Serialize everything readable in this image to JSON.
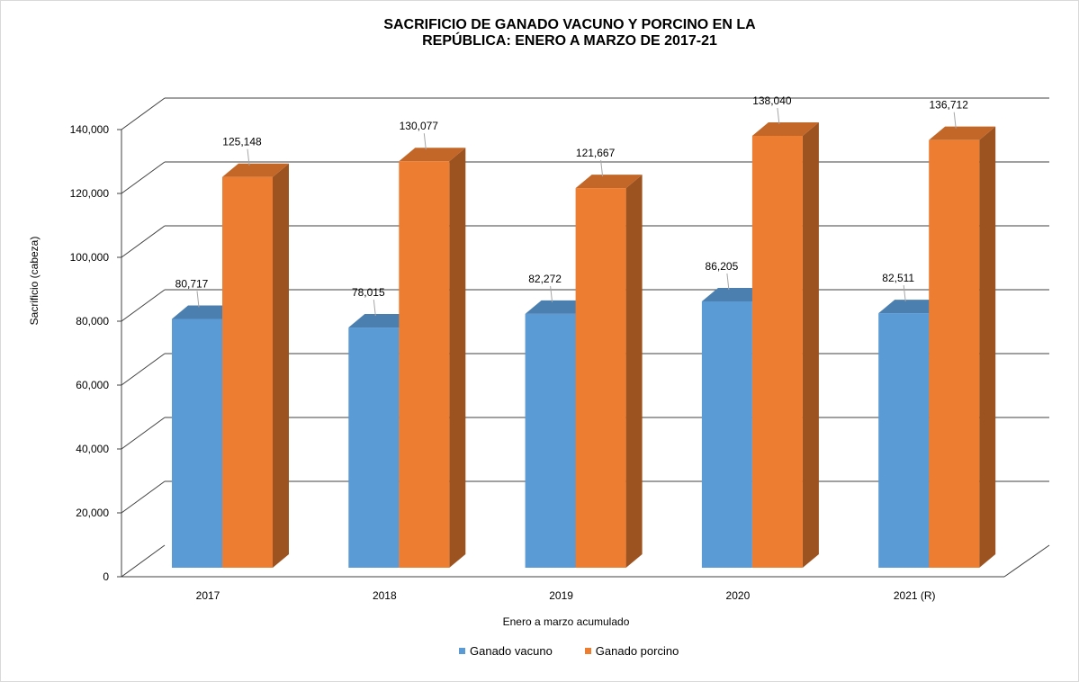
{
  "chart_data": {
    "type": "bar",
    "title_lines": [
      "SACRIFICIO DE GANADO VACUNO Y PORCINO EN LA",
      "REPÚBLICA: ENERO A MARZO DE 2017-21"
    ],
    "xlabel": "Enero a marzo acumulado",
    "ylabel": "Sacrificio (cabeza)",
    "categories": [
      "2017",
      "2018",
      "2019",
      "2020",
      "2021 (R)"
    ],
    "ylim": [
      0,
      140000
    ],
    "yticks": [
      0,
      20000,
      40000,
      60000,
      80000,
      100000,
      120000,
      140000
    ],
    "ytick_labels": [
      "0",
      "20,000",
      "40,000",
      "60,000",
      "80,000",
      "100,000",
      "120,000",
      "140,000"
    ],
    "series": [
      {
        "name": "Ganado vacuno",
        "color": "#5b9bd5",
        "values": [
          80717,
          78015,
          82272,
          86205,
          82511
        ],
        "labels": [
          "80,717",
          "78,015",
          "82,272",
          "86,205",
          "82,511"
        ]
      },
      {
        "name": "Ganado porcino",
        "color": "#ed7d31",
        "values": [
          125148,
          130077,
          121667,
          138040,
          136712
        ],
        "labels": [
          "125,148",
          "130,077",
          "121,667",
          "138,040",
          "136,712"
        ]
      }
    ],
    "legend_position": "bottom",
    "grid": true
  }
}
